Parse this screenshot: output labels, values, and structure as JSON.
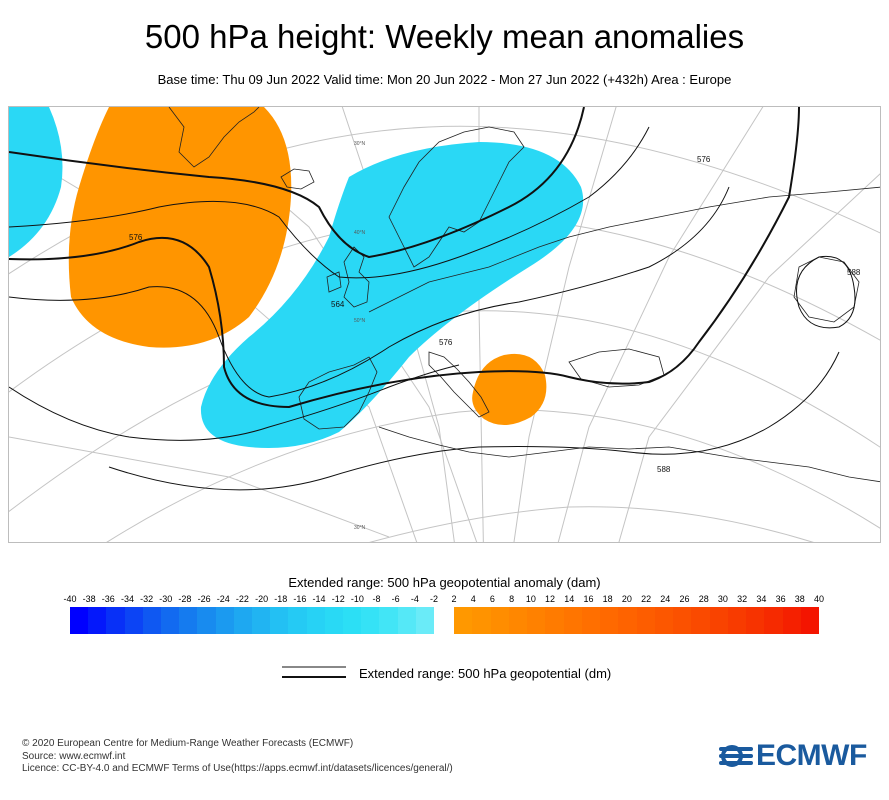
{
  "header": {
    "title": "500 hPa height: Weekly mean anomalies",
    "subtitle": "Base time: Thu 09 Jun 2022 Valid time: Mon 20 Jun 2022 - Mon 27 Jun 2022 (+432h) Area : Europe"
  },
  "map": {
    "contour_labels": [
      "576",
      "564",
      "576",
      "588",
      "588",
      "576"
    ],
    "latitude_labels": [
      "30°N",
      "30°N",
      "40°N",
      "50°N"
    ],
    "colors": {
      "negative_anomaly": "#2ad8f5",
      "positive_anomaly": "#ff9500",
      "contour": "#111111",
      "graticule": "#bfbfbf",
      "coastline": "#222222"
    }
  },
  "colorbar": {
    "title": "Extended range: 500 hPa geopotential anomaly (dam)",
    "negative_ticks": [
      "-40",
      "-38",
      "-36",
      "-34",
      "-32",
      "-30",
      "-28",
      "-26",
      "-24",
      "-22",
      "-20",
      "-18",
      "-16",
      "-14",
      "-12",
      "-10",
      "-8",
      "-6",
      "-4",
      "-2"
    ],
    "positive_ticks": [
      "2",
      "4",
      "6",
      "8",
      "10",
      "12",
      "14",
      "16",
      "18",
      "20",
      "22",
      "24",
      "26",
      "28",
      "30",
      "32",
      "34",
      "36",
      "38",
      "40"
    ],
    "negative_colors": [
      "#0000ff",
      "#0418fb",
      "#0830f7",
      "#0c44f5",
      "#0f58f2",
      "#126af0",
      "#157bef",
      "#188bef",
      "#1b9af0",
      "#1ea8f1",
      "#21b4f2",
      "#23c0f3",
      "#25caf4",
      "#27d2f5",
      "#29d9f5",
      "#2cdff5",
      "#35e2f6",
      "#42e5f6",
      "#55e8f7",
      "#6aebf8"
    ],
    "positive_colors": [
      "#ff9800",
      "#ff9300",
      "#ff8d00",
      "#ff8700",
      "#ff8100",
      "#ff7b00",
      "#ff7500",
      "#ff6f00",
      "#ff6900",
      "#fe6300",
      "#fd5d00",
      "#fc5700",
      "#fb5100",
      "#fa4a00",
      "#f94300",
      "#f83b00",
      "#f73300",
      "#f62a00",
      "#f52000",
      "#f41500"
    ]
  },
  "line_legend": {
    "label": "Extended range: 500 hPa geopotential (dm)"
  },
  "footer": {
    "line1": "© 2020 European Centre for Medium-Range Weather Forecasts (ECMWF)",
    "line2": "Source: www.ecmwf.int",
    "line3": "Licence: CC-BY-4.0 and ECMWF Terms of Use(https://apps.ecmwf.int/datasets/licences/general/)"
  },
  "logo": {
    "text": "ECMWF",
    "color": "#1a5a9e"
  }
}
